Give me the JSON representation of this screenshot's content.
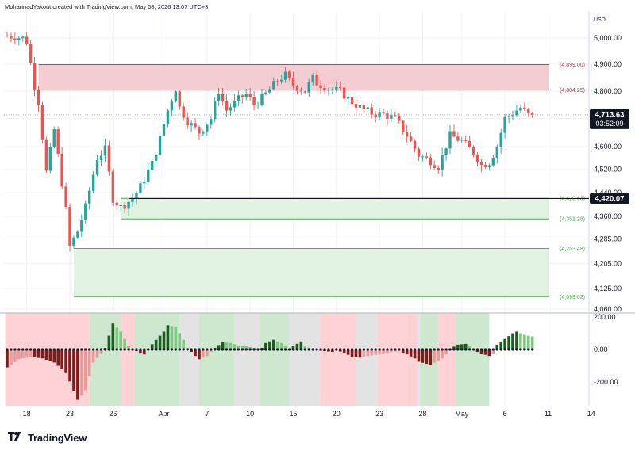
{
  "header": {
    "attribution": "MohannadYakout created with TradingView.com, May 08, 2026 13:07 UTC+3"
  },
  "footer": {
    "brand": "TradingView"
  },
  "colors": {
    "up": "#26a69a",
    "down": "#ef5350",
    "resistance_fill": "#f2c4ca",
    "resistance_line": "#d2364a",
    "support_fill": "#dcf0da",
    "support_line": "#4caf50",
    "osc_dark_up": "#1b5e20",
    "osc_light_up": "#81c784",
    "osc_dark_down": "#7f1d1d",
    "osc_light_down": "#ef9a9a",
    "bg_green": "#c8e6c9",
    "bg_red": "#ffcdd2",
    "bg_gray": "#e0e0e0"
  },
  "icons": {
    "logo": "tradingview-logo-icon"
  },
  "chart_data": {
    "type": "candlestick",
    "currency": "USD",
    "price_axis": {
      "ticks": [
        "5,000.00",
        "4,900.00",
        "4,800.00",
        "4,700.00",
        "4,600.00",
        "4,520.00",
        "4,440.00",
        "4,360.00",
        "4,285.00",
        "4,205.00",
        "4,125.00",
        "4,060.00"
      ],
      "tick_values": [
        5000,
        4900,
        4800,
        4700,
        4600,
        4520,
        4440,
        4360,
        4285,
        4205,
        4125,
        4060
      ],
      "ylim": [
        4060,
        5000
      ],
      "scale": "log"
    },
    "time_axis": {
      "ticks": [
        "18",
        "23",
        "26",
        "Apr",
        "7",
        "10",
        "15",
        "20",
        "23",
        "28",
        "May",
        "6",
        "11",
        "14"
      ],
      "tick_bars": [
        5,
        16,
        27,
        40,
        51,
        62,
        73,
        84,
        95,
        106,
        116,
        127,
        138,
        149
      ]
    },
    "current_price": "4,713.63",
    "countdown": "03:52:09",
    "price_tag": "4,420.07",
    "zones": [
      {
        "kind": "resistance",
        "top": 4899.0,
        "bottom": 4804.25,
        "top_label": "(4,899.00)",
        "bottom_label": "(4,804.25)",
        "start_bar": 8
      },
      {
        "kind": "support",
        "top": 4420.63,
        "bottom": 4351.28,
        "top_label": "(4,420.63)",
        "bottom_label": "(4,351.28)",
        "start_bar": 29
      },
      {
        "kind": "support",
        "top": 4253.48,
        "bottom": 4099.02,
        "top_label": "(4,253.48)",
        "bottom_label": "(4,099.02)",
        "start_bar": 17
      }
    ],
    "candle_path": [
      [
        0,
        5010
      ],
      [
        5,
        5000
      ],
      [
        6,
        4985
      ],
      [
        8,
        4820
      ],
      [
        9,
        4760
      ],
      [
        11,
        4510
      ],
      [
        13,
        4660
      ],
      [
        16,
        4380
      ],
      [
        17,
        4260
      ],
      [
        19,
        4310
      ],
      [
        21,
        4390
      ],
      [
        24,
        4560
      ],
      [
        26,
        4590
      ],
      [
        28,
        4420
      ],
      [
        30,
        4390
      ],
      [
        33,
        4420
      ],
      [
        35,
        4460
      ],
      [
        38,
        4540
      ],
      [
        40,
        4630
      ],
      [
        42,
        4730
      ],
      [
        44,
        4810
      ],
      [
        45,
        4740
      ],
      [
        47,
        4690
      ],
      [
        50,
        4650
      ],
      [
        53,
        4700
      ],
      [
        55,
        4800
      ],
      [
        57,
        4730
      ],
      [
        60,
        4770
      ],
      [
        62,
        4790
      ],
      [
        64,
        4750
      ],
      [
        67,
        4790
      ],
      [
        70,
        4840
      ],
      [
        72,
        4860
      ],
      [
        74,
        4820
      ],
      [
        77,
        4800
      ],
      [
        79,
        4850
      ],
      [
        80,
        4830
      ],
      [
        83,
        4810
      ],
      [
        86,
        4800
      ],
      [
        88,
        4770
      ],
      [
        91,
        4740
      ],
      [
        94,
        4720
      ],
      [
        97,
        4715
      ],
      [
        100,
        4700
      ],
      [
        103,
        4640
      ],
      [
        106,
        4570
      ],
      [
        109,
        4550
      ],
      [
        111,
        4530
      ],
      [
        114,
        4640
      ],
      [
        117,
        4620
      ],
      [
        120,
        4580
      ],
      [
        122,
        4535
      ],
      [
        124,
        4545
      ],
      [
        126,
        4600
      ],
      [
        128,
        4700
      ],
      [
        130,
        4720
      ],
      [
        132,
        4740
      ],
      [
        134,
        4713
      ]
    ],
    "oscillator": {
      "axis_ticks": [
        "200.00",
        "0.00",
        "-200.00"
      ],
      "tick_values": [
        200,
        0,
        -200
      ],
      "ylim": [
        -330,
        210
      ],
      "path": [
        [
          0,
          -110
        ],
        [
          3,
          -60
        ],
        [
          6,
          -45
        ],
        [
          9,
          -55
        ],
        [
          12,
          -80
        ],
        [
          15,
          -140
        ],
        [
          18,
          -310
        ],
        [
          20,
          -250
        ],
        [
          22,
          -80
        ],
        [
          24,
          -25
        ],
        [
          25,
          10
        ],
        [
          27,
          160
        ],
        [
          29,
          110
        ],
        [
          31,
          20
        ],
        [
          33,
          -10
        ],
        [
          35,
          -30
        ],
        [
          36,
          5
        ],
        [
          38,
          60
        ],
        [
          40,
          110
        ],
        [
          41,
          150
        ],
        [
          43,
          140
        ],
        [
          45,
          60
        ],
        [
          46,
          10
        ],
        [
          48,
          -40
        ],
        [
          49,
          -60
        ],
        [
          51,
          -40
        ],
        [
          53,
          10
        ],
        [
          55,
          45
        ],
        [
          57,
          40
        ],
        [
          59,
          25
        ],
        [
          61,
          20
        ],
        [
          63,
          10
        ],
        [
          64,
          -5
        ],
        [
          65,
          10
        ],
        [
          66,
          40
        ],
        [
          68,
          60
        ],
        [
          70,
          40
        ],
        [
          72,
          5
        ],
        [
          74,
          35
        ],
        [
          75,
          50
        ],
        [
          76,
          20
        ],
        [
          79,
          -5
        ],
        [
          81,
          -10
        ],
        [
          83,
          -15
        ],
        [
          84,
          -5
        ],
        [
          86,
          -20
        ],
        [
          88,
          -45
        ],
        [
          90,
          -50
        ],
        [
          92,
          -40
        ],
        [
          95,
          -30
        ],
        [
          98,
          -15
        ],
        [
          100,
          -10
        ],
        [
          102,
          -30
        ],
        [
          104,
          -55
        ],
        [
          105,
          -75
        ],
        [
          108,
          -95
        ],
        [
          111,
          -55
        ],
        [
          112,
          -30
        ],
        [
          113,
          5
        ],
        [
          115,
          30
        ],
        [
          117,
          35
        ],
        [
          118,
          25
        ],
        [
          119,
          -5
        ],
        [
          121,
          -25
        ],
        [
          123,
          -40
        ],
        [
          124,
          -25
        ],
        [
          125,
          30
        ],
        [
          127,
          65
        ],
        [
          129,
          100
        ],
        [
          130,
          110
        ],
        [
          132,
          90
        ],
        [
          134,
          80
        ]
      ],
      "background_segments": [
        {
          "from": 0,
          "to": 21.5,
          "state": "bearish"
        },
        {
          "from": 21.5,
          "to": 29.5,
          "state": "bullish"
        },
        {
          "from": 29.5,
          "to": 33,
          "state": "bearish"
        },
        {
          "from": 33,
          "to": 44.5,
          "state": "bullish"
        },
        {
          "from": 44.5,
          "to": 49.5,
          "state": "neutral"
        },
        {
          "from": 49.5,
          "to": 58.5,
          "state": "bullish"
        },
        {
          "from": 58.5,
          "to": 65,
          "state": "neutral"
        },
        {
          "from": 65,
          "to": 72.5,
          "state": "bullish"
        },
        {
          "from": 72.5,
          "to": 80.5,
          "state": "neutral"
        },
        {
          "from": 80.5,
          "to": 89.5,
          "state": "bearish"
        },
        {
          "from": 89.5,
          "to": 95,
          "state": "neutral"
        },
        {
          "from": 95,
          "to": 105,
          "state": "bearish"
        },
        {
          "from": 105,
          "to": 106,
          "state": "neutral"
        },
        {
          "from": 106,
          "to": 110.5,
          "state": "bullish"
        },
        {
          "from": 110.5,
          "to": 115,
          "state": "bearish"
        },
        {
          "from": 115,
          "to": 123.5,
          "state": "bullish"
        }
      ]
    }
  }
}
